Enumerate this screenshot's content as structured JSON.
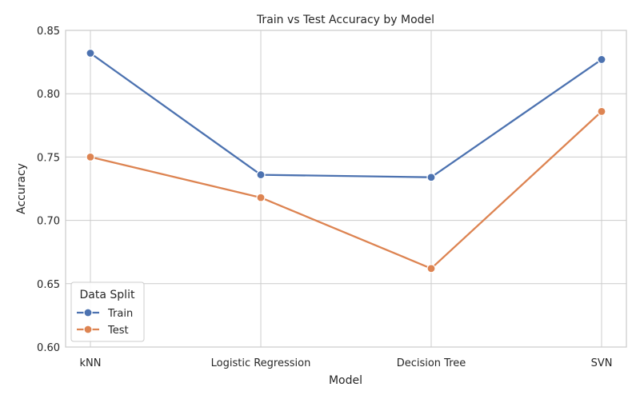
{
  "chart_data": {
    "type": "line",
    "title": "Train vs Test Accuracy by Model",
    "xlabel": "Model",
    "ylabel": "Accuracy",
    "categories": [
      "kNN",
      "Logistic Regression",
      "Decision Tree",
      "SVN"
    ],
    "ylim": [
      0.6,
      0.85
    ],
    "yticks": [
      "0.60",
      "0.65",
      "0.70",
      "0.75",
      "0.80",
      "0.85"
    ],
    "grid": true,
    "legend": {
      "title": "Data Split",
      "placement": "lower-left"
    },
    "series": [
      {
        "name": "Train",
        "color": "#4c72b0",
        "values": [
          0.832,
          0.736,
          0.734,
          0.827
        ]
      },
      {
        "name": "Test",
        "color": "#dd8452",
        "values": [
          0.75,
          0.718,
          0.662,
          0.786
        ]
      }
    ]
  }
}
